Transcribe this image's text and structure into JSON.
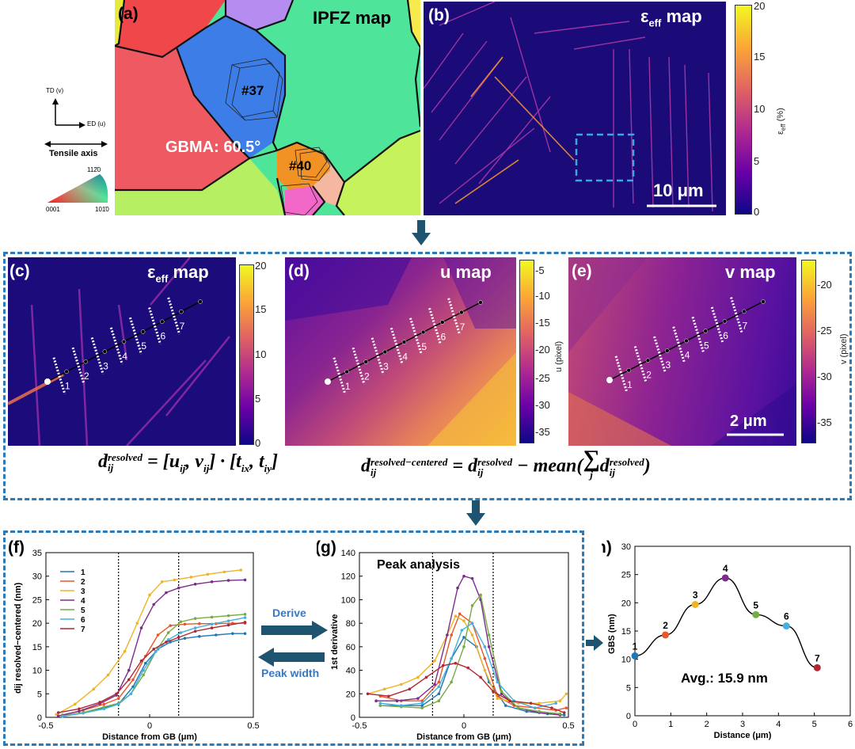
{
  "panels": {
    "a": {
      "label": "(a)",
      "title": "IPFZ map",
      "grain1": "#37",
      "grain2": "#40",
      "gbma": "GBMA: 60.5°",
      "legend": {
        "td": "TD (v)",
        "ed": "ED (u)",
        "tensile": "Tensile axis",
        "h1120": "112̄0",
        "h0001": "0001",
        "h1010": "101̄0"
      }
    },
    "b": {
      "label": "(b)",
      "title": "ε",
      "title_sub": "eff",
      "title_suffix": " map",
      "scalebar": "10 μm",
      "colorbar": {
        "ticks": [
          "20",
          "15",
          "10",
          "5",
          "0"
        ],
        "title": "ε",
        "title_sub": "eff",
        "title_suffix": " (%)"
      }
    },
    "c": {
      "label": "(c)",
      "title": "ε",
      "title_sub": "eff",
      "title_suffix": " map",
      "colorbar": {
        "ticks": [
          "20",
          "15",
          "10",
          "5",
          "0"
        ],
        "title": "ε",
        "title_sub": "eff",
        "title_suffix": " (%)"
      }
    },
    "d": {
      "label": "(d)",
      "title": "u map",
      "colorbar": {
        "ticks": [
          "-5",
          "-10",
          "-15",
          "-20",
          "-25",
          "-30",
          "-35"
        ],
        "title": "u (pixel)"
      }
    },
    "e": {
      "label": "(e)",
      "title": "v map",
      "scalebar": "2 μm",
      "colorbar": {
        "ticks": [
          "-20",
          "-25",
          "-30",
          "-35"
        ],
        "title": "v (pixel)"
      }
    },
    "f": {
      "label": "(f)",
      "xlabel": "Distance from GB (μm)",
      "ylabel": "d",
      "ylabel_sup": "resolved−centered",
      "ylabel_sub": "ij",
      "ylabel_unit": " (nm)"
    },
    "g": {
      "label": "(g)",
      "xlabel": "Distance from GB (μm)",
      "ylabel": "1st derivative",
      "annotation": "Peak analysis"
    },
    "h": {
      "label": "(h)",
      "xlabel": "Distance (μm)",
      "ylabel": "GBS (nm)",
      "annotation": "Avg.: 15.9 nm"
    }
  },
  "line_points": [
    "1",
    "2",
    "3",
    "4",
    "5",
    "6",
    "7"
  ],
  "arrows": {
    "derive": "Derive",
    "peak_width": "Peak width"
  },
  "equations": {
    "eq1_lhs": "d",
    "eq1_sup": "resolved",
    "eq1_sub": "ij",
    "eq1_rhs": "= [u",
    "eq1_rhs2": ", v",
    "eq1_rhs3": "] · [t",
    "eq1_rhs4": ", t",
    "eq1_rhs5": "]",
    "eq2_lhs": "d",
    "eq2_sup": "resolved−centered",
    "eq2_sub": "ij",
    "eq2_mid": "= d",
    "eq2_sup2": "resolved",
    "eq2_minus": " − mean(",
    "eq2_sum": "∑",
    "eq2_j": "j",
    "eq2_sup3": "resolved",
    "eq2_close": ")",
    "sub_ij": "ij",
    "sub_ix": "ix",
    "sub_iy": "iy"
  },
  "colors": {
    "accent": "#2b7bb9",
    "arrow": "#1f5470",
    "label_blue": "#3a78c2"
  },
  "chart_data": [
    {
      "type": "line",
      "panel": "f",
      "xlabel": "Distance from GB (μm)",
      "ylabel": "d_ij^resolved−centered (nm)",
      "xlim": [
        -0.5,
        0.5
      ],
      "ylim": [
        0,
        35
      ],
      "xticks": [
        -0.5,
        0,
        0.5
      ],
      "yticks": [
        0,
        5,
        10,
        15,
        20,
        25,
        30,
        35
      ],
      "vlines": [
        -0.15,
        0.14
      ],
      "legend": "top-left",
      "series": [
        {
          "name": "1",
          "color": "#1f77b4",
          "x": [
            -0.42,
            -0.32,
            -0.22,
            -0.15,
            -0.08,
            -0.02,
            0.04,
            0.1,
            0.17,
            0.24,
            0.32,
            0.4,
            0.46
          ],
          "y": [
            0.3,
            1.0,
            2.0,
            2.8,
            6.5,
            11.5,
            14.5,
            16.0,
            16.8,
            17.2,
            17.5,
            17.8,
            17.8
          ]
        },
        {
          "name": "2",
          "color": "#e8562a",
          "x": [
            -0.42,
            -0.32,
            -0.22,
            -0.15,
            -0.08,
            -0.02,
            0.04,
            0.1,
            0.17,
            0.24,
            0.32,
            0.4,
            0.46
          ],
          "y": [
            0.5,
            1.5,
            2.8,
            4.0,
            8.0,
            13.0,
            17.5,
            19.5,
            19.8,
            19.9,
            19.9,
            20.0,
            20.0
          ]
        },
        {
          "name": "3",
          "color": "#f0b323",
          "x": [
            -0.45,
            -0.36,
            -0.27,
            -0.2,
            -0.12,
            -0.06,
            0.0,
            0.06,
            0.12,
            0.2,
            0.28,
            0.36,
            0.44
          ],
          "y": [
            0.6,
            2.8,
            6.0,
            9.0,
            14.0,
            20.0,
            26.0,
            28.8,
            29.2,
            29.8,
            30.4,
            30.9,
            31.3
          ]
        },
        {
          "name": "4",
          "color": "#7e2b8e",
          "x": [
            -0.44,
            -0.34,
            -0.24,
            -0.16,
            -0.1,
            -0.04,
            0.02,
            0.08,
            0.14,
            0.22,
            0.3,
            0.38,
            0.46
          ],
          "y": [
            0.3,
            1.3,
            2.9,
            4.7,
            10.0,
            19.0,
            24.0,
            26.5,
            27.5,
            28.3,
            28.8,
            29.1,
            29.2
          ]
        },
        {
          "name": "5",
          "color": "#77ab43",
          "x": [
            -0.42,
            -0.32,
            -0.22,
            -0.15,
            -0.09,
            -0.03,
            0.03,
            0.09,
            0.15,
            0.22,
            0.3,
            0.38,
            0.46
          ],
          "y": [
            0.3,
            1.0,
            2.2,
            3.0,
            5.0,
            9.0,
            14.0,
            18.0,
            20.3,
            21.0,
            21.3,
            21.6,
            21.9
          ]
        },
        {
          "name": "6",
          "color": "#43b0e0",
          "x": [
            -0.42,
            -0.32,
            -0.22,
            -0.15,
            -0.09,
            -0.03,
            0.03,
            0.09,
            0.15,
            0.22,
            0.3,
            0.38,
            0.46
          ],
          "y": [
            0.2,
            0.9,
            1.8,
            2.8,
            5.0,
            10.0,
            14.0,
            16.5,
            18.0,
            19.0,
            19.8,
            20.5,
            21.2
          ]
        },
        {
          "name": "7",
          "color": "#b02734",
          "x": [
            -0.44,
            -0.34,
            -0.24,
            -0.16,
            -0.1,
            -0.04,
            0.02,
            0.08,
            0.14,
            0.22,
            0.3,
            0.38,
            0.46
          ],
          "y": [
            1.0,
            1.8,
            3.2,
            5.0,
            8.0,
            12.0,
            14.5,
            16.0,
            17.0,
            18.3,
            19.0,
            19.6,
            20.2
          ]
        }
      ]
    },
    {
      "type": "line",
      "panel": "g",
      "title": "Peak analysis",
      "xlabel": "Distance from GB (μm)",
      "ylabel": "1st derivative",
      "xlim": [
        -0.5,
        0.5
      ],
      "ylim": [
        0,
        140
      ],
      "xticks": [
        -0.5,
        0,
        0.5
      ],
      "yticks": [
        0,
        20,
        40,
        60,
        80,
        100,
        120,
        140
      ],
      "vlines": [
        -0.15,
        0.14
      ],
      "series": [
        {
          "name": "1",
          "color": "#1f77b4",
          "x": [
            -0.4,
            -0.3,
            -0.2,
            -0.12,
            -0.06,
            0.0,
            0.06,
            0.12,
            0.2,
            0.3,
            0.4,
            0.48
          ],
          "y": [
            10,
            10,
            10,
            20,
            50,
            68,
            60,
            30,
            10,
            5,
            3,
            2
          ]
        },
        {
          "name": "2",
          "color": "#e8562a",
          "x": [
            -0.4,
            -0.3,
            -0.2,
            -0.12,
            -0.06,
            -0.02,
            0.04,
            0.1,
            0.16,
            0.24,
            0.34,
            0.44,
            0.49
          ],
          "y": [
            18,
            14,
            14,
            30,
            70,
            88,
            80,
            50,
            18,
            10,
            8,
            6,
            8
          ]
        },
        {
          "name": "3",
          "color": "#f0b323",
          "x": [
            -0.46,
            -0.38,
            -0.3,
            -0.22,
            -0.14,
            -0.08,
            -0.04,
            0.0,
            0.04,
            0.1,
            0.16,
            0.26,
            0.36,
            0.46,
            0.49
          ],
          "y": [
            20,
            24,
            28,
            34,
            48,
            70,
            86,
            82,
            70,
            40,
            16,
            12,
            12,
            14,
            20
          ]
        },
        {
          "name": "4",
          "color": "#7e2b8e",
          "x": [
            -0.42,
            -0.32,
            -0.22,
            -0.14,
            -0.08,
            -0.03,
            0.0,
            0.04,
            0.08,
            0.12,
            0.18,
            0.26,
            0.36,
            0.46
          ],
          "y": [
            14,
            14,
            16,
            28,
            70,
            110,
            120,
            118,
            100,
            60,
            20,
            8,
            4,
            2
          ]
        },
        {
          "name": "5",
          "color": "#77ab43",
          "x": [
            -0.4,
            -0.3,
            -0.2,
            -0.12,
            -0.06,
            0.0,
            0.04,
            0.08,
            0.12,
            0.18,
            0.26,
            0.36,
            0.46
          ],
          "y": [
            10,
            9,
            8,
            14,
            30,
            60,
            95,
            104,
            70,
            22,
            8,
            5,
            3
          ]
        },
        {
          "name": "6",
          "color": "#43b0e0",
          "x": [
            -0.4,
            -0.3,
            -0.2,
            -0.12,
            -0.06,
            -0.01,
            0.04,
            0.1,
            0.16,
            0.24,
            0.34,
            0.44
          ],
          "y": [
            12,
            10,
            12,
            26,
            50,
            74,
            80,
            60,
            30,
            14,
            8,
            12
          ]
        },
        {
          "name": "7",
          "color": "#b02734",
          "x": [
            -0.46,
            -0.36,
            -0.26,
            -0.18,
            -0.1,
            -0.04,
            0.02,
            0.08,
            0.14,
            0.22,
            0.32,
            0.42,
            0.48
          ],
          "y": [
            20,
            18,
            24,
            34,
            44,
            46,
            42,
            34,
            22,
            14,
            12,
            8,
            4
          ]
        }
      ]
    },
    {
      "type": "line",
      "panel": "h",
      "xlabel": "Distance (μm)",
      "ylabel": "GBS (nm)",
      "xlim": [
        0,
        6
      ],
      "ylim": [
        0,
        30
      ],
      "xticks": [
        0,
        1,
        2,
        3,
        4,
        5,
        6
      ],
      "yticks": [
        0,
        5,
        10,
        15,
        20,
        25,
        30
      ],
      "annotation": "Avg.: 15.9 nm",
      "points": [
        {
          "label": "1",
          "x": 0.0,
          "y": 10.6,
          "color": "#1f77b4"
        },
        {
          "label": "2",
          "x": 0.85,
          "y": 14.3,
          "color": "#e8562a"
        },
        {
          "label": "3",
          "x": 1.68,
          "y": 19.7,
          "color": "#f0b323"
        },
        {
          "label": "4",
          "x": 2.52,
          "y": 24.4,
          "color": "#7e2b8e"
        },
        {
          "label": "5",
          "x": 3.37,
          "y": 17.9,
          "color": "#77ab43"
        },
        {
          "label": "6",
          "x": 4.22,
          "y": 15.9,
          "color": "#43b0e0"
        },
        {
          "label": "7",
          "x": 5.08,
          "y": 8.5,
          "color": "#b02734"
        }
      ]
    }
  ]
}
